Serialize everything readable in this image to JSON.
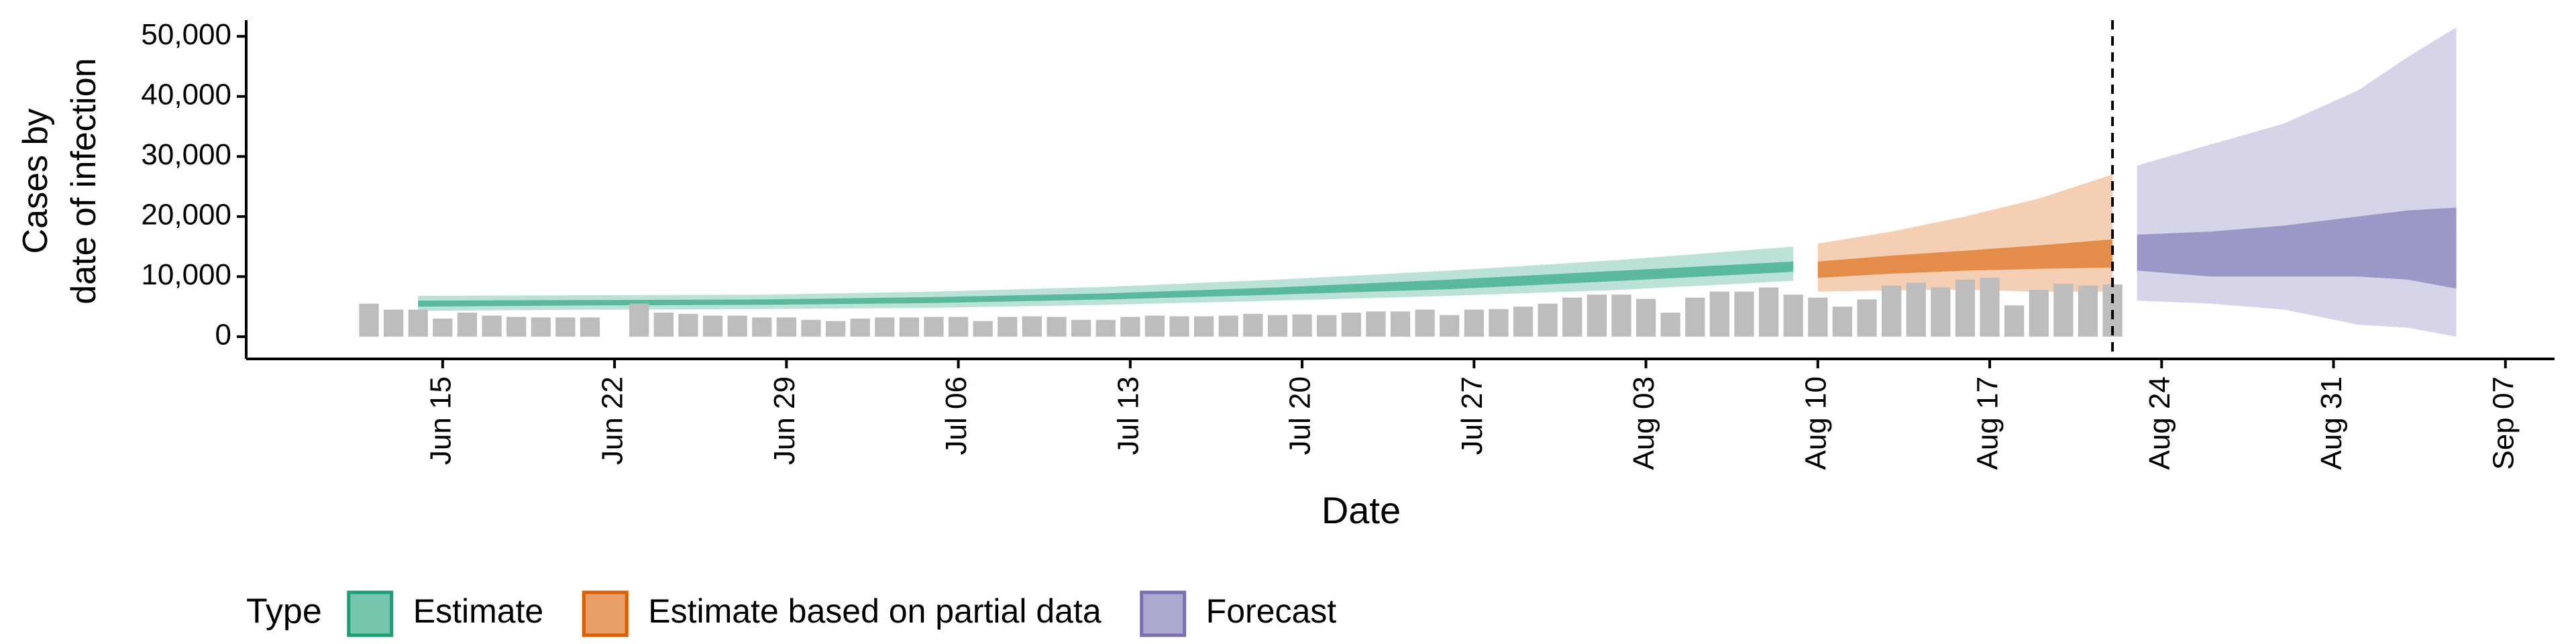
{
  "chart_data": {
    "type": "bar",
    "x_label": "Date",
    "y_label": [
      "Cases by",
      "date of infection"
    ],
    "legend_title": "Type",
    "xlim": [
      "06-07",
      "09-09"
    ],
    "xticks": [
      {
        "value": "06-15",
        "label": "Jun 15"
      },
      {
        "value": "06-22",
        "label": "Jun 22"
      },
      {
        "value": "06-29",
        "label": "Jun 29"
      },
      {
        "value": "07-06",
        "label": "Jul 06"
      },
      {
        "value": "07-13",
        "label": "Jul 13"
      },
      {
        "value": "07-20",
        "label": "Jul 20"
      },
      {
        "value": "07-27",
        "label": "Jul 27"
      },
      {
        "value": "08-03",
        "label": "Aug 03"
      },
      {
        "value": "08-10",
        "label": "Aug 10"
      },
      {
        "value": "08-17",
        "label": "Aug 17"
      },
      {
        "value": "08-24",
        "label": "Aug 24"
      },
      {
        "value": "08-31",
        "label": "Aug 31"
      },
      {
        "value": "09-07",
        "label": "Sep 07"
      }
    ],
    "ylim": [
      -3700,
      52700
    ],
    "yticks": [
      0,
      {
        "value": 10000,
        "label": "10,000"
      },
      {
        "value": 20000,
        "label": "20,000"
      },
      {
        "value": 30000,
        "label": "30,000"
      },
      {
        "value": 40000,
        "label": "40,000"
      },
      {
        "value": 50000,
        "label": "50,000"
      }
    ],
    "vline": "08-22",
    "bars": {
      "color": "#bdbdbd",
      "x": [
        "06-12",
        "06-13",
        "06-14",
        "06-15",
        "06-16",
        "06-17",
        "06-18",
        "06-19",
        "06-20",
        "06-21",
        "06-22",
        "06-23",
        "06-24",
        "06-25",
        "06-26",
        "06-27",
        "06-28",
        "06-29",
        "06-30",
        "07-01",
        "07-02",
        "07-03",
        "07-04",
        "07-05",
        "07-06",
        "07-07",
        "07-08",
        "07-09",
        "07-10",
        "07-11",
        "07-12",
        "07-13",
        "07-14",
        "07-15",
        "07-16",
        "07-17",
        "07-18",
        "07-19",
        "07-20",
        "07-21",
        "07-22",
        "07-23",
        "07-24",
        "07-25",
        "07-26",
        "07-27",
        "07-28",
        "07-29",
        "07-30",
        "07-31",
        "08-01",
        "08-02",
        "08-03",
        "08-04",
        "08-05",
        "08-06",
        "08-07",
        "08-08",
        "08-09",
        "08-10",
        "08-11",
        "08-12",
        "08-13",
        "08-14",
        "08-15",
        "08-16",
        "08-17",
        "08-18",
        "08-19",
        "08-20",
        "08-21",
        "08-22"
      ],
      "values": [
        5500,
        4500,
        4500,
        3000,
        4000,
        3500,
        3300,
        3200,
        3200,
        3200,
        null,
        5500,
        4000,
        3800,
        3500,
        3500,
        3200,
        3200,
        2800,
        2600,
        3000,
        3200,
        3200,
        3300,
        3300,
        2600,
        3300,
        3400,
        3300,
        2800,
        2800,
        3300,
        3500,
        3400,
        3400,
        3500,
        3800,
        3600,
        3700,
        3600,
        4000,
        4200,
        4200,
        4500,
        3600,
        4500,
        4600,
        5000,
        5500,
        6500,
        7000,
        7000,
        6300,
        4000,
        6500,
        7500,
        7500,
        8200,
        7000,
        6500,
        5000,
        6200,
        8500,
        9000,
        8200,
        9500,
        9800,
        5200,
        7800,
        8800,
        8500,
        8700
      ]
    },
    "ribbons": [
      {
        "name": "Estimate",
        "color": "#1b9e77",
        "x": [
          "06-14",
          "06-21",
          "06-28",
          "07-05",
          "07-12",
          "07-19",
          "07-26",
          "08-02",
          "08-09"
        ],
        "lower90": [
          4300,
          4500,
          4600,
          4800,
          5300,
          6000,
          6800,
          7800,
          9300
        ],
        "upper90": [
          6800,
          6900,
          7000,
          7500,
          8300,
          9500,
          11000,
          12800,
          15000
        ],
        "lower50": [
          5000,
          5200,
          5300,
          5600,
          6200,
          7000,
          7900,
          9300,
          10800
        ],
        "upper50": [
          6000,
          6100,
          6200,
          6600,
          7200,
          8200,
          9500,
          11000,
          12500
        ]
      },
      {
        "name": "Estimate based on partial data",
        "color": "#d95f02",
        "x": [
          "08-10",
          "08-13",
          "08-16",
          "08-19",
          "08-22"
        ],
        "lower90": [
          7500,
          7700,
          7800,
          7500,
          7500
        ],
        "upper90": [
          15500,
          17500,
          20000,
          23000,
          27000
        ],
        "lower50": [
          9800,
          10500,
          11000,
          11300,
          11500
        ],
        "upper50": [
          12500,
          13500,
          14300,
          15200,
          16200
        ]
      },
      {
        "name": "Forecast",
        "color": "#7570b3",
        "x": [
          "08-23",
          "08-26",
          "08-29",
          "09-01",
          "09-03",
          "09-05"
        ],
        "lower90": [
          6000,
          5500,
          4500,
          2000,
          1500,
          0
        ],
        "upper90": [
          28500,
          32000,
          35500,
          41000,
          46500,
          51500
        ],
        "lower50": [
          11000,
          10000,
          10000,
          10000,
          9500,
          8000
        ],
        "upper50": [
          17000,
          17500,
          18500,
          20000,
          21000,
          21500
        ]
      }
    ]
  }
}
